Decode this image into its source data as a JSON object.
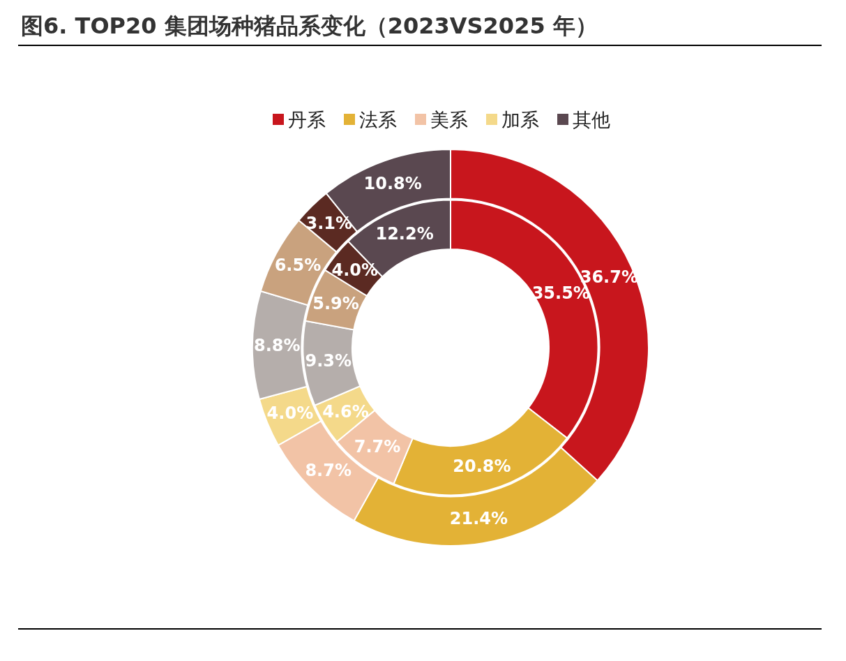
{
  "chart_data": {
    "type": "donut",
    "title": "图6. TOP20 集团场种猪品系变化（2023VS2025 年）",
    "categories": [
      "丹系",
      "法系",
      "美系",
      "加系",
      null,
      null,
      null,
      "其他"
    ],
    "colors": [
      "#c8161d",
      "#e3b236",
      "#f2c3a6",
      "#f4d98a",
      "#b5aeab",
      "#c9a27e",
      "#5b2a22",
      "#5a4850"
    ],
    "series": [
      {
        "values": [
          35.5,
          20.8,
          7.7,
          4.6,
          9.3,
          5.9,
          4.0,
          12.2
        ],
        "value_labels": [
          "35.5%",
          "20.8%",
          "7.7%",
          "4.6%",
          "9.3%",
          "5.9%",
          "4.0%",
          "12.2%"
        ]
      },
      {
        "values": [
          36.7,
          21.4,
          8.7,
          4.0,
          8.8,
          6.5,
          3.1,
          10.8
        ],
        "value_labels": [
          "36.7%",
          "21.4%",
          "8.7%",
          "4.0%",
          "8.8%",
          "6.5%",
          "3.1%",
          "10.8%"
        ]
      }
    ],
    "legend": "top"
  }
}
